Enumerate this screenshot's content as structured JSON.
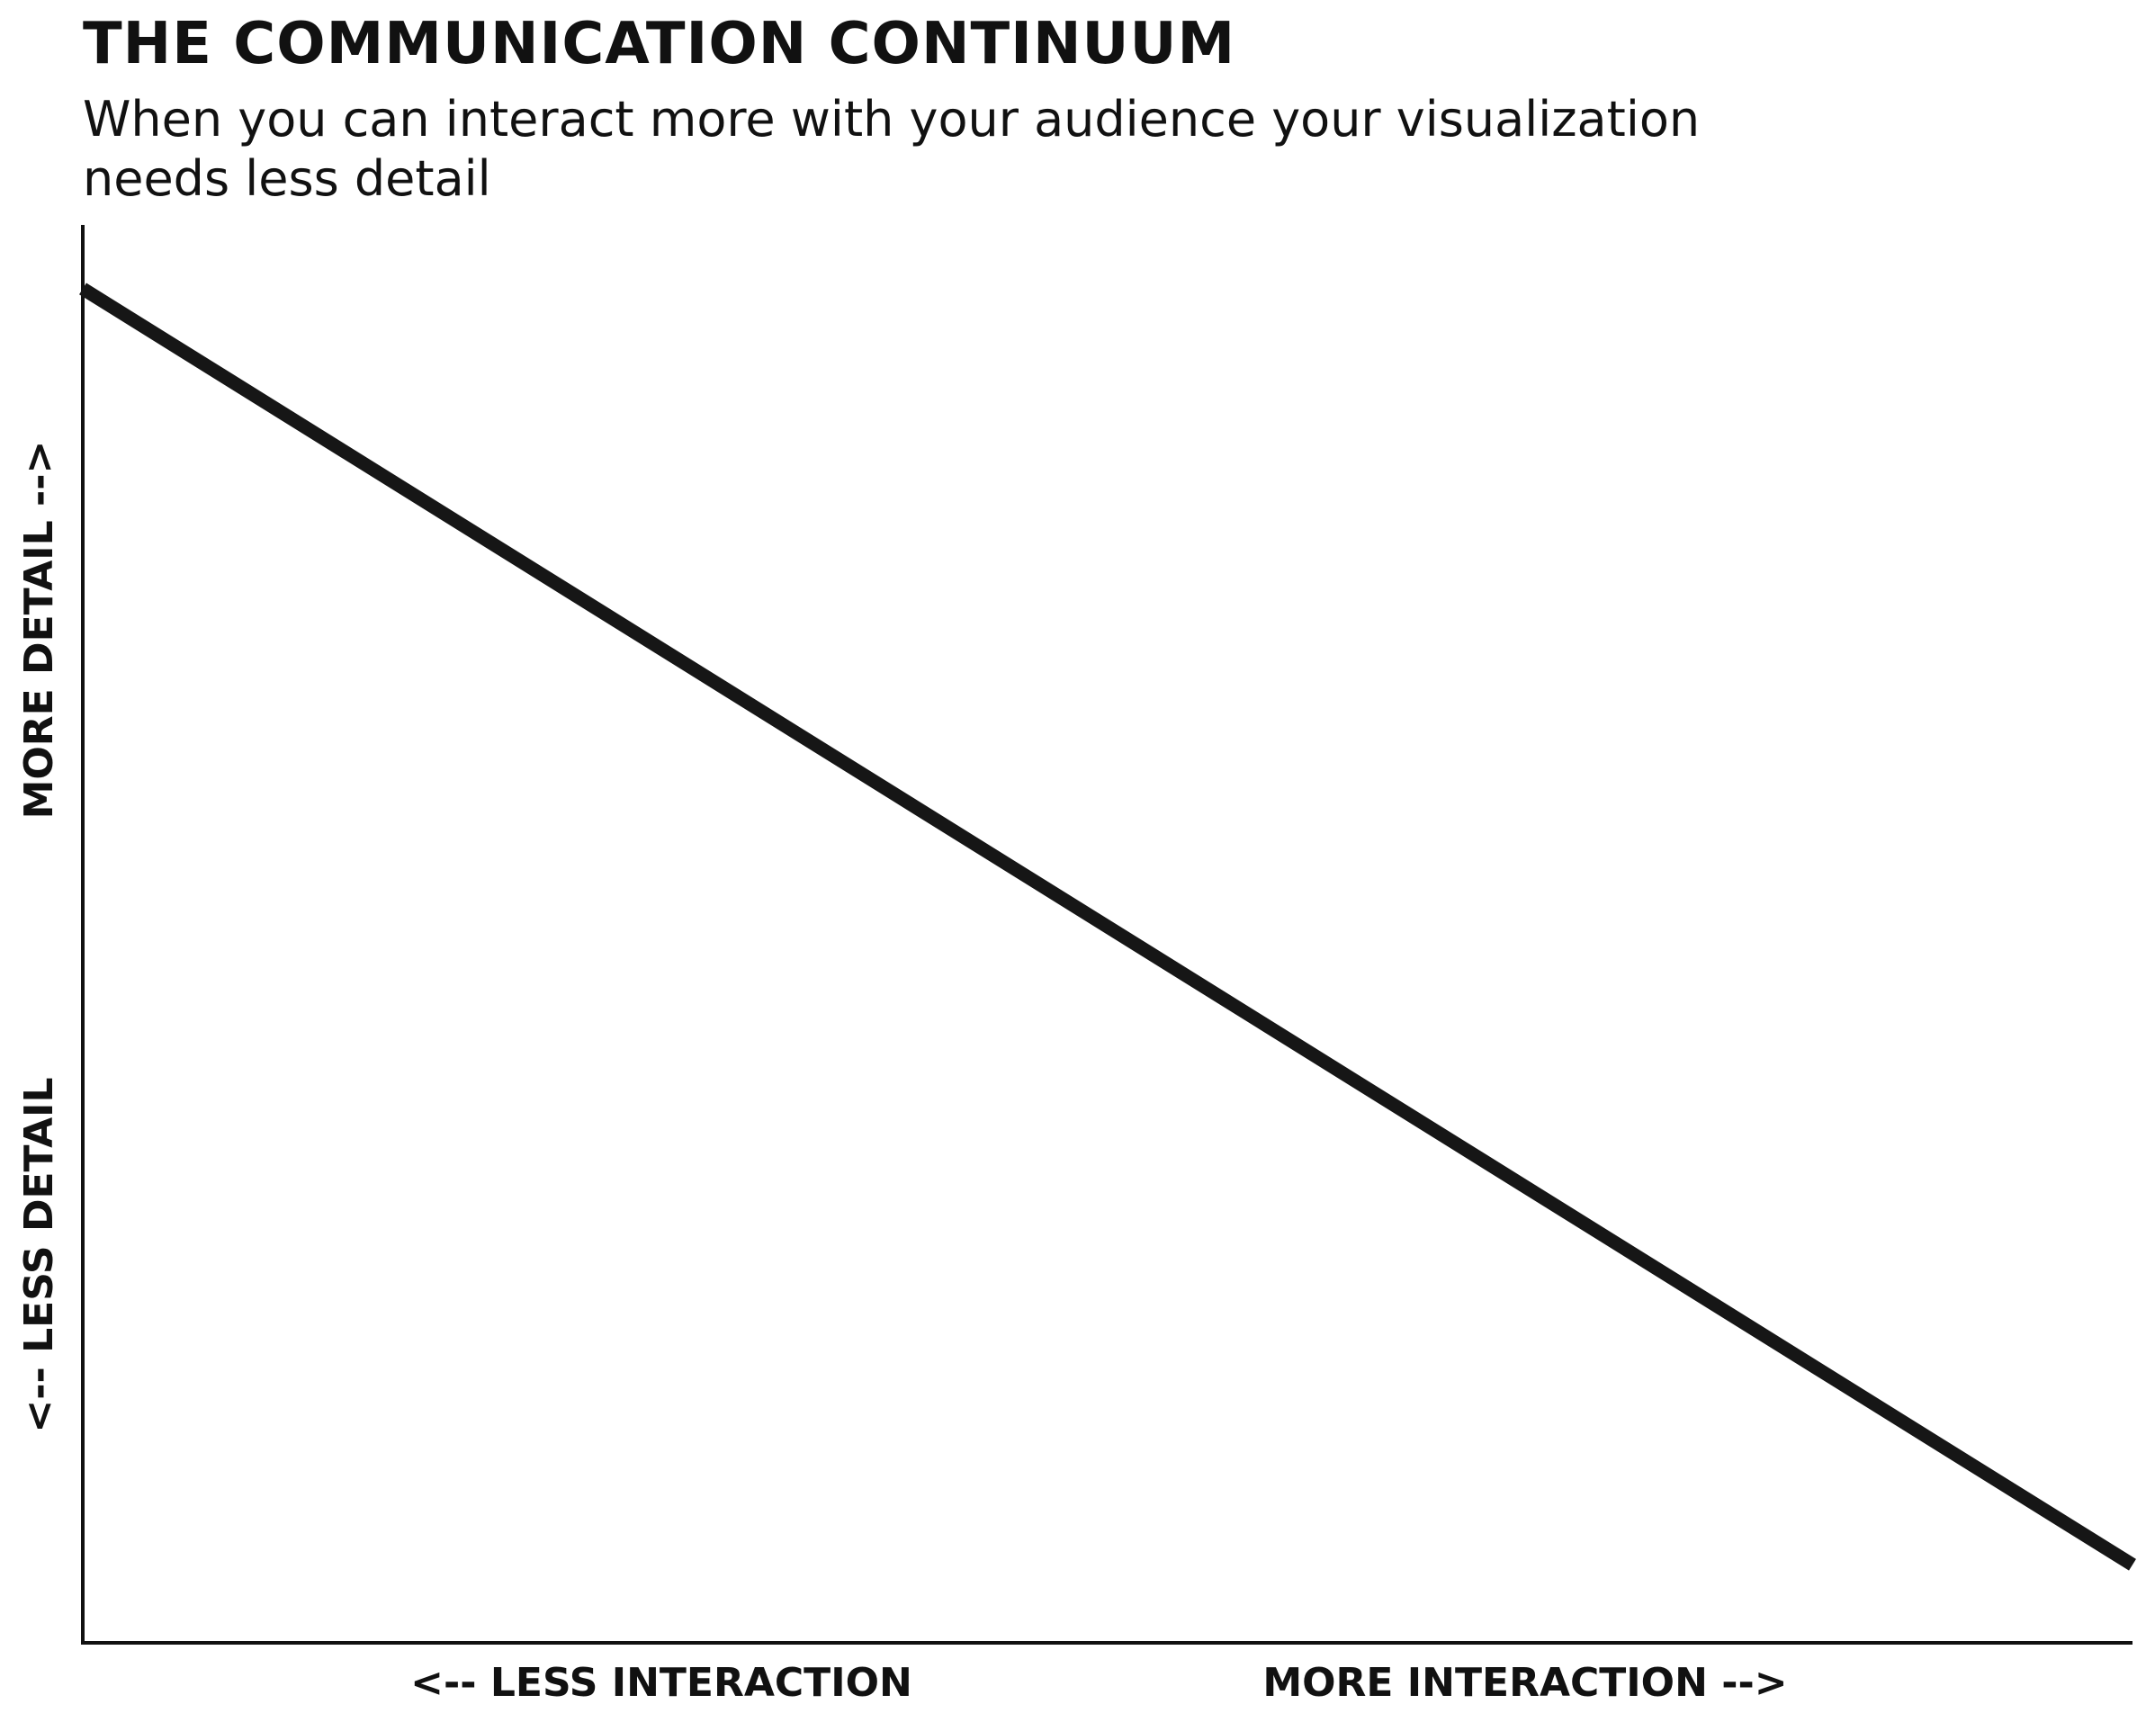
{
  "chart_data": {
    "type": "line",
    "title": "THE COMMUNICATION CONTINUUM",
    "subtitle": "When you can interact more with your audience your visualization needs less detail",
    "x_axis": {
      "label_low": "<-- LESS INTERACTION",
      "label_high": "MORE INTERACTION -->",
      "ticks": false,
      "range": [
        0,
        1
      ]
    },
    "y_axis": {
      "label_low": "<-- LESS DETAIL",
      "label_high": "MORE DETAIL -->",
      "ticks": false,
      "range": [
        0,
        1
      ]
    },
    "grid": false,
    "legend": "none",
    "series": [
      {
        "x": [
          0,
          1
        ],
        "y": [
          0.955,
          0.055
        ],
        "color": "#161616"
      }
    ]
  }
}
